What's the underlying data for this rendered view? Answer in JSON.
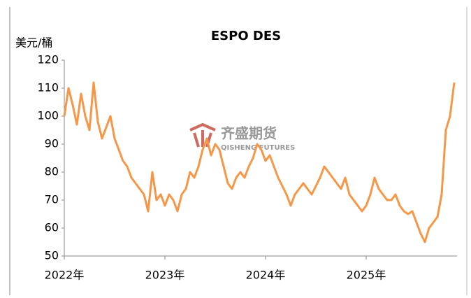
{
  "chart_data": {
    "type": "line",
    "title": "ESPO DES",
    "y_label": "美元/桶",
    "watermark": {
      "name": "齐盛期货",
      "sub": "QISHENG FUTURES"
    },
    "categories": [
      "2022年",
      null,
      null,
      null,
      null,
      null,
      null,
      null,
      null,
      null,
      null,
      null,
      null,
      null,
      null,
      null,
      null,
      null,
      null,
      null,
      null,
      null,
      null,
      null,
      "2023年",
      null,
      null,
      null,
      null,
      null,
      null,
      null,
      null,
      null,
      null,
      null,
      null,
      null,
      null,
      null,
      null,
      null,
      null,
      null,
      null,
      null,
      null,
      null,
      "2024年",
      null,
      null,
      null,
      null,
      null,
      null,
      null,
      null,
      null,
      null,
      null,
      null,
      null,
      null,
      null,
      null,
      null,
      null,
      null,
      null,
      null,
      null,
      null,
      "2025年",
      null,
      null,
      null,
      null,
      null,
      null,
      null,
      null,
      null,
      null,
      null,
      null,
      null,
      null,
      null,
      null,
      null,
      null,
      null,
      null,
      null
    ],
    "series": [
      {
        "name": "ESPO DES",
        "color": "#f79646",
        "values": [
          100,
          110,
          104,
          97,
          108,
          100,
          95,
          112,
          98,
          92,
          96,
          100,
          92,
          88,
          84,
          82,
          78,
          76,
          74,
          72,
          66,
          80,
          70,
          72,
          68,
          72,
          70,
          66,
          72,
          74,
          80,
          78,
          82,
          88,
          92,
          86,
          90,
          88,
          82,
          76,
          74,
          78,
          80,
          78,
          82,
          85,
          90,
          88,
          84,
          86,
          82,
          78,
          75,
          72,
          68,
          72,
          74,
          76,
          74,
          72,
          75,
          78,
          82,
          80,
          78,
          76,
          74,
          78,
          72,
          70,
          68,
          66,
          68,
          72,
          78,
          74,
          72,
          70,
          70,
          72,
          68,
          66,
          65,
          66,
          62,
          58,
          55,
          60,
          62,
          64,
          72,
          95,
          100,
          112
        ]
      }
    ],
    "ylim": [
      50,
      120
    ],
    "yticks": [
      50,
      60,
      70,
      80,
      90,
      100,
      110,
      120
    ],
    "grid": false
  }
}
